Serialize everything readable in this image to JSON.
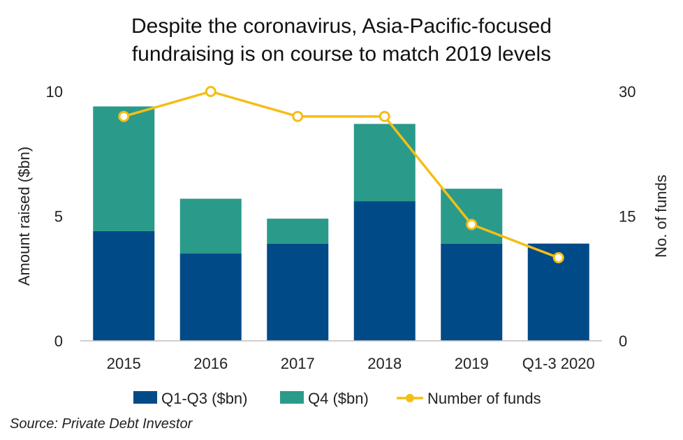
{
  "title_lines": [
    "Despite the coronavirus, Asia-Pacific-focused",
    "fundraising is on course to match 2019 levels"
  ],
  "source": "Source: Private Debt Investor",
  "colors": {
    "q1q3": "#004a87",
    "q4": "#2a9a8a",
    "funds": "#f5be16",
    "axis": "#bfbfbf"
  },
  "chart_data": {
    "type": "bar",
    "stacked": true,
    "title": "Despite the coronavirus, Asia-Pacific-focused fundraising is on course to match 2019 levels",
    "categories": [
      "2015",
      "2016",
      "2017",
      "2018",
      "2019",
      "Q1-3 2020"
    ],
    "series": [
      {
        "name": "Q1-Q3 ($bn)",
        "type": "bar",
        "axis": "left",
        "values": [
          4.4,
          3.5,
          3.9,
          5.6,
          3.9,
          3.9
        ]
      },
      {
        "name": "Q4 ($bn)",
        "type": "bar",
        "axis": "left",
        "values": [
          5.0,
          2.2,
          1.0,
          3.1,
          2.2,
          0
        ]
      },
      {
        "name": "Number of funds",
        "type": "line",
        "axis": "right",
        "values": [
          27,
          30,
          27,
          27,
          14,
          10
        ]
      }
    ],
    "ylabel": "Amount raised ($bn)",
    "y2label": "No. of funds",
    "ylim": [
      0,
      10
    ],
    "y2lim": [
      0,
      30
    ],
    "yticks": [
      "0",
      "5",
      "10"
    ],
    "y2ticks": [
      "0",
      "15",
      "30"
    ],
    "legend_position": "bottom",
    "grid": false
  }
}
